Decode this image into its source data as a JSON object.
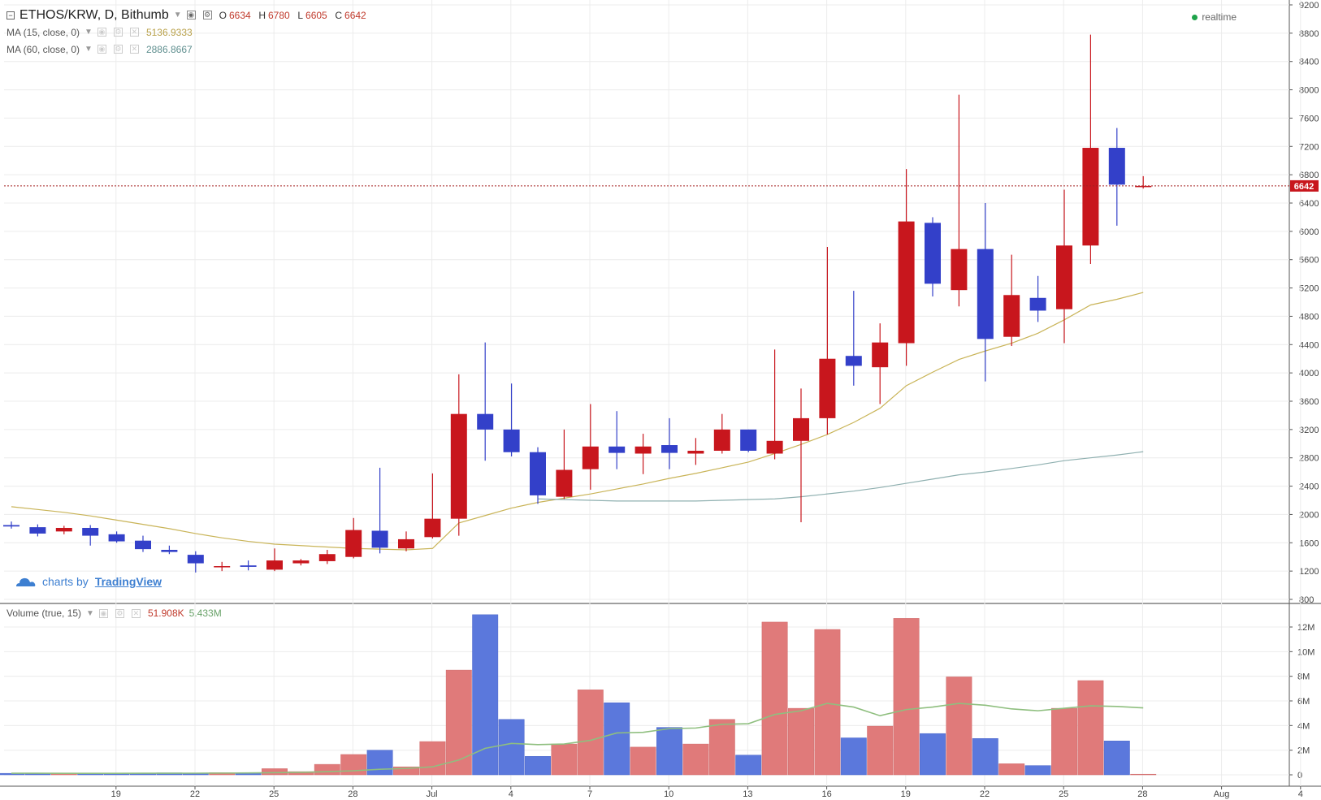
{
  "header": {
    "symbol": "ETHOS/KRW, D, Bithumb",
    "ohlc": {
      "o_label": "O",
      "o": "6634",
      "h_label": "H",
      "h": "6780",
      "l_label": "L",
      "l": "6605",
      "c_label": "C",
      "c": "6642"
    },
    "realtime": "realtime"
  },
  "indicators": {
    "ma15": {
      "label": "MA (15, close, 0)",
      "value": "5136.9333",
      "color": "#c9b458"
    },
    "ma60": {
      "label": "MA (60, close, 0)",
      "value": "2886.8667",
      "color": "#8fb0b0"
    },
    "volume": {
      "label": "Volume (true, 15)",
      "value1": "51.908K",
      "value2": "5.433M"
    }
  },
  "branding": {
    "prefix": "charts by",
    "name": "TradingView"
  },
  "colors": {
    "up": "#c8161d",
    "down": "#3340c9",
    "vol_up": "#e07a7a",
    "vol_down": "#5b78dc",
    "vol_ma": "#8fbf7f",
    "price_line": "#a31f1f"
  },
  "chart_data": {
    "type": "candlestick",
    "last_price": "6642",
    "x_tick_labels": [
      "19",
      "22",
      "25",
      "28",
      "Jul",
      "4",
      "7",
      "10",
      "13",
      "16",
      "19",
      "22",
      "25",
      "28",
      "Aug",
      "4"
    ],
    "y_tick_labels": [
      "800",
      "1200",
      "1600",
      "2000",
      "2400",
      "2800",
      "3200",
      "3600",
      "4000",
      "4400",
      "4800",
      "5200",
      "5600",
      "6000",
      "6400",
      "6800",
      "7200",
      "7600",
      "8000",
      "8400",
      "8800",
      "9200"
    ],
    "ylim": [
      800,
      9200
    ],
    "volume_tick_labels": [
      "0",
      "2M",
      "4M",
      "6M",
      "8M",
      "10M",
      "12M"
    ],
    "volume_ylim": [
      0,
      12000000
    ],
    "candles": [
      {
        "date": "Jun 17",
        "o": 1850,
        "h": 1900,
        "l": 1800,
        "c": 1830
      },
      {
        "date": "Jun 18",
        "o": 1820,
        "h": 1860,
        "l": 1690,
        "c": 1730
      },
      {
        "date": "Jun 19",
        "o": 1760,
        "h": 1840,
        "l": 1720,
        "c": 1810
      },
      {
        "date": "Jun 20",
        "o": 1810,
        "h": 1850,
        "l": 1560,
        "c": 1700
      },
      {
        "date": "Jun 21",
        "o": 1720,
        "h": 1760,
        "l": 1600,
        "c": 1620
      },
      {
        "date": "Jun 22",
        "o": 1630,
        "h": 1700,
        "l": 1470,
        "c": 1510
      },
      {
        "date": "Jun 23",
        "o": 1500,
        "h": 1560,
        "l": 1440,
        "c": 1470
      },
      {
        "date": "Jun 24",
        "o": 1430,
        "h": 1480,
        "l": 1180,
        "c": 1310
      },
      {
        "date": "Jun 25",
        "o": 1260,
        "h": 1330,
        "l": 1200,
        "c": 1270
      },
      {
        "date": "Jun 26",
        "o": 1280,
        "h": 1350,
        "l": 1210,
        "c": 1260
      },
      {
        "date": "Jun 27",
        "o": 1220,
        "h": 1520,
        "l": 1200,
        "c": 1350
      },
      {
        "date": "Jun 28",
        "o": 1310,
        "h": 1370,
        "l": 1280,
        "c": 1350
      },
      {
        "date": "Jun 29",
        "o": 1340,
        "h": 1500,
        "l": 1300,
        "c": 1440
      },
      {
        "date": "Jun 30",
        "o": 1400,
        "h": 1950,
        "l": 1380,
        "c": 1780
      },
      {
        "date": "Jul 1",
        "o": 1770,
        "h": 2660,
        "l": 1450,
        "c": 1530
      },
      {
        "date": "Jul 2",
        "o": 1520,
        "h": 1760,
        "l": 1480,
        "c": 1650
      },
      {
        "date": "Jul 3",
        "o": 1680,
        "h": 2580,
        "l": 1660,
        "c": 1940
      },
      {
        "date": "Jul 4",
        "o": 1940,
        "h": 3980,
        "l": 1700,
        "c": 3420
      },
      {
        "date": "Jul 5",
        "o": 3420,
        "h": 4430,
        "l": 2760,
        "c": 3200
      },
      {
        "date": "Jul 6",
        "o": 3200,
        "h": 3850,
        "l": 2820,
        "c": 2880
      },
      {
        "date": "Jul 7",
        "o": 2880,
        "h": 2950,
        "l": 2150,
        "c": 2270
      },
      {
        "date": "Jul 8",
        "o": 2250,
        "h": 3200,
        "l": 2220,
        "c": 2630
      },
      {
        "date": "Jul 9",
        "o": 2640,
        "h": 3560,
        "l": 2350,
        "c": 2960
      },
      {
        "date": "Jul 10",
        "o": 2960,
        "h": 3460,
        "l": 2640,
        "c": 2870
      },
      {
        "date": "Jul 11",
        "o": 2860,
        "h": 3140,
        "l": 2570,
        "c": 2960
      },
      {
        "date": "Jul 12",
        "o": 2980,
        "h": 3360,
        "l": 2640,
        "c": 2870
      },
      {
        "date": "Jul 13",
        "o": 2860,
        "h": 3080,
        "l": 2700,
        "c": 2900
      },
      {
        "date": "Jul 14",
        "o": 2900,
        "h": 3420,
        "l": 2860,
        "c": 3200
      },
      {
        "date": "Jul 15",
        "o": 3200,
        "h": 3200,
        "l": 2880,
        "c": 2900
      },
      {
        "date": "Jul 16",
        "o": 2860,
        "h": 4330,
        "l": 2780,
        "c": 3040
      },
      {
        "date": "Jul 17",
        "o": 3040,
        "h": 3780,
        "l": 1890,
        "c": 3360
      },
      {
        "date": "Jul 18",
        "o": 3360,
        "h": 5780,
        "l": 3130,
        "c": 4200
      },
      {
        "date": "Jul 19",
        "o": 4240,
        "h": 5160,
        "l": 3820,
        "c": 4100
      },
      {
        "date": "Jul 20",
        "o": 4080,
        "h": 4700,
        "l": 3560,
        "c": 4430
      },
      {
        "date": "Jul 21",
        "o": 4420,
        "h": 6880,
        "l": 4100,
        "c": 6140
      },
      {
        "date": "Jul 22",
        "o": 6120,
        "h": 6200,
        "l": 5080,
        "c": 5260
      },
      {
        "date": "Jul 23",
        "o": 5170,
        "h": 7930,
        "l": 4940,
        "c": 5750
      },
      {
        "date": "Jul 24",
        "o": 5750,
        "h": 6400,
        "l": 3880,
        "c": 4480
      },
      {
        "date": "Jul 25",
        "o": 4510,
        "h": 5670,
        "l": 4380,
        "c": 5100
      },
      {
        "date": "Jul 26",
        "o": 5060,
        "h": 5370,
        "l": 4720,
        "c": 4880
      },
      {
        "date": "Jul 27",
        "o": 4900,
        "h": 6590,
        "l": 4420,
        "c": 5800
      },
      {
        "date": "Jul 28",
        "o": 5800,
        "h": 8780,
        "l": 5540,
        "c": 7180
      },
      {
        "date": "Jul 29",
        "o": 7180,
        "h": 7460,
        "l": 6080,
        "c": 6660
      },
      {
        "date": "Jul 30",
        "o": 6634,
        "h": 6780,
        "l": 6605,
        "c": 6642
      }
    ],
    "ma15": [
      null,
      null,
      null,
      null,
      null,
      null,
      null,
      null,
      null,
      null,
      null,
      null,
      null,
      null,
      null,
      null,
      null,
      1880,
      1985,
      2090,
      2170,
      2230,
      2290,
      2360,
      2430,
      2510,
      2580,
      2660,
      2740,
      2860,
      2990,
      3130,
      3300,
      3500,
      3820,
      4010,
      4190,
      4310,
      4420,
      4560,
      4750,
      4960,
      5040,
      5137
    ],
    "ma60": [
      null,
      null,
      null,
      null,
      null,
      null,
      null,
      null,
      null,
      null,
      null,
      null,
      null,
      null,
      null,
      null,
      null,
      null,
      null,
      null,
      2220,
      2210,
      2200,
      2190,
      2190,
      2190,
      2190,
      2200,
      2210,
      2220,
      2250,
      2290,
      2330,
      2380,
      2440,
      2500,
      2560,
      2600,
      2650,
      2700,
      2760,
      2800,
      2840,
      2887
    ],
    "ma15_early": [
      2110,
      2070,
      2030,
      1980,
      1920,
      1860,
      1800,
      1730,
      1670,
      1620,
      1580,
      1560,
      1540,
      1520,
      1510,
      1500,
      1520
    ],
    "volume": [
      120000,
      80000,
      150000,
      90000,
      130000,
      100000,
      160000,
      110000,
      180000,
      170000,
      500000,
      260000,
      850000,
      1650000,
      2000000,
      650000,
      2700000,
      8500000,
      13000000,
      4500000,
      1500000,
      2500000,
      6900000,
      5850000,
      2250000,
      3850000,
      2500000,
      4500000,
      1600000,
      12400000,
      5400000,
      11800000,
      3000000,
      3950000,
      12700000,
      3350000,
      7950000,
      2950000,
      900000,
      750000,
      5400000,
      7650000,
      2750000,
      52000
    ],
    "volume_ma": [
      130000,
      125000,
      120000,
      118000,
      120000,
      125000,
      130000,
      132000,
      140000,
      150000,
      180000,
      200000,
      260000,
      330000,
      450000,
      520000,
      650000,
      1200000,
      2150000,
      2550000,
      2450000,
      2500000,
      2800000,
      3400000,
      3450000,
      3750000,
      3800000,
      4100000,
      4150000,
      4900000,
      5200000,
      5800000,
      5500000,
      4800000,
      5300000,
      5500000,
      5800000,
      5650000,
      5350000,
      5200000,
      5400000,
      5600000,
      5550000,
      5433000
    ]
  }
}
